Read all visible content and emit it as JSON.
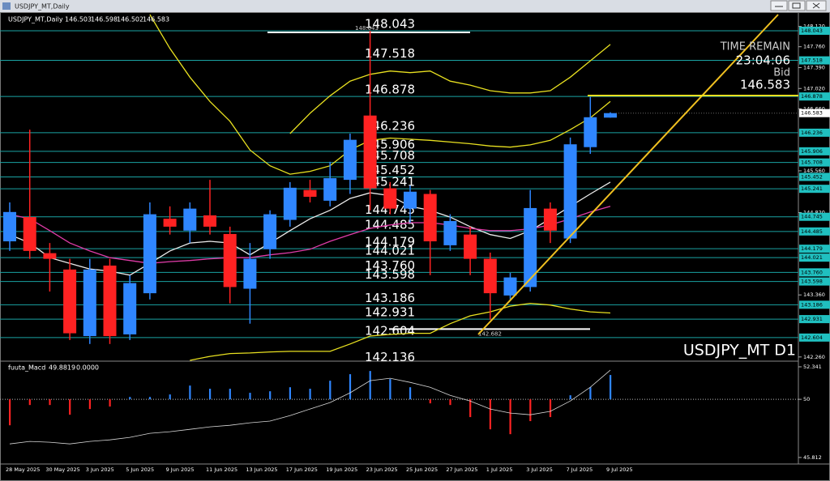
{
  "window_title": "USDJPY_MT,Daily",
  "chart_data": [
    {
      "type": "candlestick",
      "title": "USDJPY_MT,Daily",
      "ohlc": [
        146.503,
        146.598,
        146.502,
        146.583
      ],
      "categories": [
        "28 May 2025",
        null,
        "30 May 2025",
        null,
        "3 Jun 2025",
        null,
        "5 Jun 2025",
        null,
        "9 Jun 2025",
        null,
        "11 Jun 2025",
        null,
        "13 Jun 2025",
        null,
        "17 Jun 2025",
        null,
        "19 Jun 2025",
        null,
        "23 Jun 2025",
        null,
        "25 Jun 2025",
        null,
        "27 Jun 2025",
        null,
        "1 Jul 2025",
        null,
        "3 Jul 2025",
        null,
        "7 Jul 2025",
        null,
        "9 Jul 2025"
      ],
      "open": [
        144.31,
        144.74,
        144.1,
        143.81,
        142.63,
        143.88,
        142.66,
        143.39,
        144.71,
        144.5,
        144.77,
        144.44,
        143.47,
        144.17,
        144.69,
        145.22,
        145.03,
        145.4,
        146.54,
        145.25,
        144.89,
        145.15,
        144.24,
        144.43,
        144.0,
        143.35,
        143.5,
        144.89,
        144.36,
        145.98,
        146.503
      ],
      "high": [
        145.0,
        146.29,
        144.28,
        144.0,
        144.0,
        144.0,
        143.71,
        145.0,
        144.93,
        145.0,
        145.4,
        144.57,
        144.28,
        144.86,
        145.36,
        145.4,
        145.72,
        146.22,
        148.043,
        145.36,
        145.3,
        145.22,
        144.79,
        144.57,
        144.11,
        143.75,
        145.22,
        145.0,
        146.15,
        146.87,
        146.598
      ],
      "low": [
        144.14,
        144.0,
        143.42,
        142.56,
        142.49,
        142.49,
        142.56,
        143.28,
        144.43,
        144.28,
        144.43,
        143.21,
        142.85,
        144.0,
        144.57,
        145.0,
        144.93,
        145.15,
        144.86,
        144.79,
        144.64,
        143.71,
        144.14,
        143.71,
        142.92,
        143.28,
        143.42,
        144.28,
        144.28,
        145.86,
        146.502
      ],
      "close": [
        144.83,
        144.14,
        144.0,
        142.68,
        143.81,
        142.63,
        143.57,
        144.79,
        144.57,
        144.89,
        144.57,
        143.5,
        144.0,
        144.79,
        145.26,
        145.1,
        145.43,
        146.11,
        145.25,
        144.89,
        145.19,
        144.31,
        144.67,
        144.0,
        143.39,
        143.67,
        144.9,
        144.5,
        146.03,
        146.51,
        146.583
      ],
      "up_color": "#2f86ff",
      "down_color": "#ff2222",
      "overlays": [
        {
          "color": "#e8e020",
          "values": [
            null,
            null,
            null,
            null,
            null,
            null,
            null,
            148.33,
            147.73,
            147.22,
            146.79,
            146.44,
            145.93,
            145.65,
            145.5,
            145.55,
            145.65,
            145.93,
            146.1,
            146.14,
            146.12,
            146.1,
            146.07,
            146.04,
            146.0,
            145.98,
            146.02,
            146.1,
            146.29,
            146.5,
            146.79
          ]
        },
        {
          "color": "#e8e020",
          "values": [
            null,
            null,
            null,
            null,
            null,
            null,
            null,
            null,
            null,
            null,
            null,
            null,
            null,
            null,
            146.22,
            146.58,
            146.89,
            147.15,
            147.27,
            147.33,
            147.3,
            147.33,
            147.15,
            147.08,
            146.98,
            146.94,
            146.94,
            146.98,
            147.22,
            147.51,
            147.8
          ]
        },
        {
          "color": "#e8e020",
          "values": [
            null,
            null,
            null,
            null,
            null,
            null,
            null,
            null,
            null,
            142.2,
            142.27,
            142.32,
            142.33,
            142.35,
            142.36,
            142.36,
            142.36,
            142.49,
            142.63,
            142.66,
            142.68,
            142.68,
            142.85,
            142.99,
            143.06,
            143.16,
            143.21,
            143.18,
            143.11,
            143.06,
            143.04
          ]
        },
        {
          "color": "#ececec",
          "values": [
            144.43,
            144.28,
            144.02,
            143.92,
            143.82,
            143.78,
            143.71,
            143.92,
            144.14,
            144.28,
            144.31,
            144.28,
            144.07,
            144.28,
            144.5,
            144.71,
            144.86,
            145.07,
            145.17,
            145.12,
            144.93,
            144.86,
            144.74,
            144.57,
            144.43,
            144.36,
            144.5,
            144.71,
            144.93,
            145.15,
            145.36
          ]
        },
        {
          "color": "#e03ca8",
          "values": [
            144.79,
            144.71,
            144.5,
            144.28,
            144.14,
            144.02,
            143.97,
            143.92,
            143.95,
            143.97,
            144.0,
            144.02,
            144.02,
            144.07,
            144.11,
            144.17,
            144.31,
            144.43,
            144.54,
            144.6,
            144.64,
            144.64,
            144.6,
            144.54,
            144.5,
            144.5,
            144.53,
            144.6,
            144.71,
            144.83,
            144.93
          ]
        }
      ],
      "levels": [
        148.043,
        147.518,
        146.878,
        146.236,
        145.906,
        145.708,
        145.452,
        145.241,
        144.745,
        144.485,
        144.179,
        144.021,
        {
          "value": 143.76,
          "label": "143.760"
        },
        143.598,
        143.186,
        142.931,
        142.604,
        142.136
      ],
      "level_color": "#1aa3a3",
      "high_marker": 148.043,
      "low_marker": 142.682,
      "bid": 146.583,
      "info": {
        "time_label": "TIME REMAIN",
        "time": "23:04:06",
        "bid_label": "Bid",
        "bid": 146.583
      },
      "corner_label": "USDJPY_MT D1",
      "ylim": [
        142.2,
        148.33
      ],
      "yticks": [
        {
          "value": 148.12,
          "label": "148.120"
        },
        {
          "value": 147.76,
          "label": "147.760"
        },
        {
          "value": 147.39,
          "label": "147.390"
        },
        {
          "value": 147.02,
          "label": "147.020"
        },
        {
          "value": 146.66,
          "label": "146.660"
        },
        {
          "value": 145.56,
          "label": "145.560"
        },
        {
          "value": 144.82,
          "label": "144.820"
        },
        {
          "value": 143.36,
          "label": "143.360"
        },
        {
          "value": 142.26,
          "label": "142.260"
        }
      ]
    },
    {
      "type": "macd",
      "title": "fuuta_Macd",
      "readout": [
        49.8819,
        {
          "value": 0,
          "label": "0.0000"
        }
      ],
      "baseline": 50,
      "values": [
        48.13,
        49.59,
        49.59,
        48.89,
        49.3,
        49.48,
        50.17,
        50.17,
        50.35,
        50.99,
        50.76,
        50.76,
        50.47,
        50.58,
        50.87,
        50.76,
        51.34,
        51.81,
        52.04,
        51.46,
        50.87,
        49.71,
        49.59,
        48.72,
        47.84,
        47.49,
        48.43,
        48.72,
        50.29,
        50.87,
        51.75
      ],
      "signal": [
        46.79,
        46.97,
        46.91,
        46.79,
        46.97,
        47.08,
        47.26,
        47.55,
        47.67,
        47.84,
        48.02,
        48.13,
        48.31,
        48.43,
        48.83,
        49.3,
        49.77,
        50.47,
        51.34,
        51.52,
        51.22,
        50.87,
        50.29,
        49.88,
        49.3,
        49.01,
        48.89,
        49.13,
        49.88,
        50.87,
        52.1
      ],
      "up_color": "#2f86ff",
      "down_color": "#ff2222",
      "signal_color": "#d8d8d8",
      "ylim": [
        45.4,
        52.69
      ],
      "yticks": [
        52.341,
        50,
        45.812
      ]
    }
  ]
}
